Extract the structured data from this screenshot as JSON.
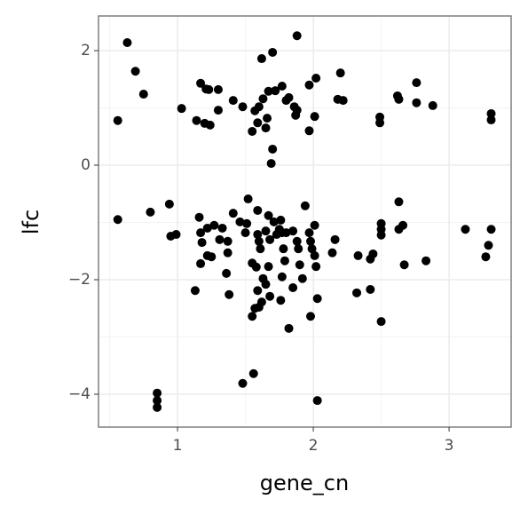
{
  "chart_data": {
    "type": "scatter",
    "x_label": "gene_cn",
    "y_label": "lfc",
    "color": "#000000",
    "grid": true,
    "xlim": [
      0.418,
      3.457
    ],
    "ylim": [
      -4.574,
      2.605
    ],
    "xticks": [
      1,
      2,
      3
    ],
    "yticks": [
      {
        "value": -4,
        "label": "−4"
      },
      {
        "value": -2,
        "label": "−2"
      },
      0,
      2
    ],
    "series": [
      {
        "name": "points",
        "x": [
          0.63,
          0.69,
          0.75,
          0.56,
          0.56,
          0.8,
          0.94,
          0.95,
          0.99,
          1.03,
          1.14,
          1.17,
          1.21,
          1.23,
          1.2,
          1.24,
          1.3,
          1.3,
          1.41,
          1.48,
          1.52,
          1.57,
          1.6,
          1.55,
          1.59,
          1.62,
          1.7,
          1.67,
          1.63,
          1.66,
          1.65,
          1.72,
          1.77,
          1.8,
          1.82,
          1.87,
          1.86,
          1.88,
          1.88,
          1.97,
          2.02,
          1.97,
          2.01,
          2.2,
          2.18,
          2.22,
          2.49,
          2.49,
          2.62,
          2.63,
          2.76,
          2.76,
          2.88,
          3.31,
          3.31,
          1.7,
          1.69,
          1.16,
          1.17,
          1.18,
          1.22,
          1.25,
          1.22,
          1.27,
          1.33,
          1.31,
          1.37,
          1.37,
          1.36,
          1.38,
          1.41,
          1.46,
          1.51,
          1.5,
          1.59,
          1.6,
          1.61,
          1.55,
          1.58,
          1.59,
          1.57,
          1.55,
          1.6,
          1.62,
          1.63,
          1.67,
          1.65,
          1.68,
          1.67,
          1.65,
          1.68,
          1.71,
          1.73,
          1.76,
          1.77,
          1.78,
          1.79,
          1.77,
          1.76,
          1.8,
          1.85,
          1.88,
          1.9,
          1.92,
          1.85,
          1.82,
          1.94,
          1.97,
          1.98,
          1.99,
          2.01,
          2.01,
          2.02,
          1.98,
          2.03,
          2.03,
          1.89,
          2.14,
          2.16,
          2.33,
          2.44,
          2.42,
          2.32,
          2.42,
          2.5,
          2.5,
          2.5,
          2.5,
          2.63,
          2.63,
          2.66,
          2.67,
          2.83,
          3.12,
          3.29,
          3.27,
          3.31,
          1.13,
          1.17,
          1.48,
          1.56,
          0.85,
          0.85,
          0.85,
          1.59,
          1.75
        ],
        "values": [
          2.14,
          1.64,
          1.24,
          0.78,
          -0.95,
          -0.82,
          -0.68,
          -1.24,
          -1.21,
          0.99,
          0.78,
          1.43,
          1.33,
          1.32,
          0.73,
          0.7,
          0.96,
          1.32,
          1.13,
          1.02,
          -0.59,
          0.95,
          1.02,
          0.59,
          0.74,
          1.86,
          1.97,
          1.29,
          1.16,
          0.82,
          0.65,
          1.3,
          1.38,
          1.13,
          1.18,
          0.87,
          1.02,
          0.96,
          2.26,
          1.4,
          1.52,
          0.6,
          0.85,
          1.61,
          1.15,
          1.13,
          0.84,
          0.74,
          1.21,
          1.15,
          1.44,
          1.09,
          1.04,
          0.9,
          0.79,
          0.28,
          0.03,
          -0.91,
          -1.18,
          -1.35,
          -1.1,
          -1.6,
          -1.58,
          -1.05,
          -1.1,
          -1.3,
          -1.33,
          -1.53,
          -1.89,
          -2.26,
          -0.84,
          -0.99,
          -1.02,
          -1.18,
          -1.21,
          -1.33,
          -1.46,
          -1.71,
          -1.78,
          -2.19,
          -2.5,
          -2.64,
          -2.48,
          -2.39,
          -1.98,
          -0.88,
          -1.15,
          -1.3,
          -1.77,
          -2.08,
          -2.29,
          -0.99,
          -1.21,
          -0.96,
          -1.18,
          -1.46,
          -1.67,
          -1.95,
          -2.36,
          -1.18,
          -1.15,
          -1.33,
          -1.74,
          -1.98,
          -2.14,
          -2.85,
          -0.71,
          -1.18,
          -1.33,
          -1.46,
          -1.58,
          -1.05,
          -1.77,
          -2.64,
          -2.33,
          -4.11,
          -1.46,
          -1.53,
          -1.3,
          -1.58,
          -1.55,
          -1.64,
          -2.23,
          -2.17,
          -1.02,
          -1.12,
          -1.22,
          -2.73,
          -0.64,
          -1.12,
          -1.05,
          -1.74,
          -1.67,
          -1.12,
          -1.4,
          -1.6,
          -1.12,
          -2.19,
          -1.72,
          -3.81,
          -3.64,
          -3.98,
          -4.11,
          -4.23,
          -0.79,
          -1.12
        ]
      }
    ]
  }
}
